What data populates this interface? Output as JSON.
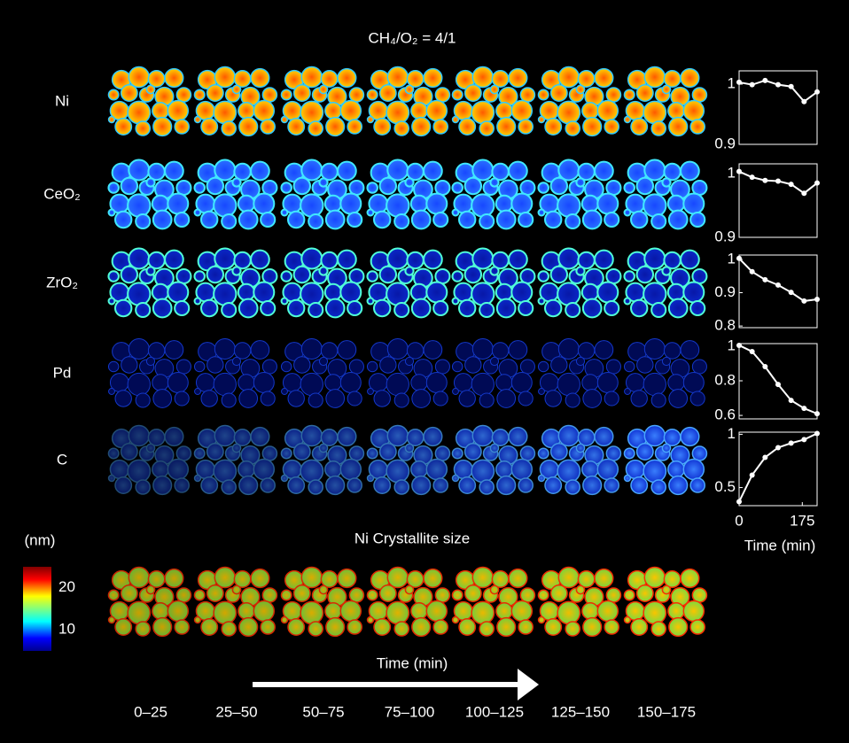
{
  "figure": {
    "title": "CH₄/O₂ = 4/1",
    "rows": [
      "Ni",
      "CeO₂",
      "ZrO₂",
      "Pd",
      "C"
    ],
    "crystallite_title": "Ni Crystallite size",
    "colorbar": {
      "unit": "(nm)",
      "clim": [
        5,
        25
      ],
      "ticks": [
        20,
        10
      ]
    },
    "time_label": "Time (min)",
    "time_bins": [
      "0–25",
      "25–50",
      "50–75",
      "75–100",
      "100–125",
      "125–150",
      "150–175"
    ]
  },
  "chart_data": [
    {
      "type": "line",
      "color": "#ffffff",
      "x": [
        0,
        36,
        72,
        108,
        144,
        180,
        216
      ],
      "xlim": [
        0,
        216
      ],
      "values": [
        1.003,
        0.999,
        1.006,
        0.999,
        0.996,
        0.971,
        0.987
      ],
      "ylim": [
        0.9,
        1.022
      ],
      "yticks": [
        1,
        0.9
      ]
    },
    {
      "type": "line",
      "color": "#ffffff",
      "x": [
        0,
        36,
        72,
        108,
        144,
        180,
        216
      ],
      "xlim": [
        0,
        216
      ],
      "values": [
        1.003,
        0.994,
        0.989,
        0.988,
        0.983,
        0.969,
        0.985
      ],
      "ylim": [
        0.9,
        1.015
      ],
      "yticks": [
        1,
        0.9
      ]
    },
    {
      "type": "line",
      "color": "#ffffff",
      "x": [
        0,
        36,
        72,
        108,
        144,
        180,
        216
      ],
      "xlim": [
        0,
        216
      ],
      "values": [
        1.003,
        0.963,
        0.939,
        0.923,
        0.901,
        0.875,
        0.88
      ],
      "ylim": [
        0.795,
        1.013
      ],
      "yticks": [
        1,
        0.9,
        0.8
      ]
    },
    {
      "type": "line",
      "color": "#ffffff",
      "x": [
        0,
        36,
        72,
        108,
        144,
        180,
        216
      ],
      "xlim": [
        0,
        216
      ],
      "values": [
        1.005,
        0.969,
        0.882,
        0.779,
        0.687,
        0.641,
        0.61
      ],
      "ylim": [
        0.58,
        1.015
      ],
      "yticks": [
        1,
        0.8,
        0.6
      ]
    },
    {
      "type": "line",
      "color": "#ffffff",
      "x": [
        0,
        36,
        72,
        108,
        144,
        180,
        216
      ],
      "xlim": [
        0,
        216
      ],
      "values": [
        0.367,
        0.617,
        0.783,
        0.875,
        0.917,
        0.95,
        1.008
      ],
      "ylim": [
        0.33,
        1.02
      ],
      "yticks": [
        1,
        0.5
      ],
      "xticks": [
        0,
        175
      ],
      "x_label": "Time (min)"
    }
  ]
}
